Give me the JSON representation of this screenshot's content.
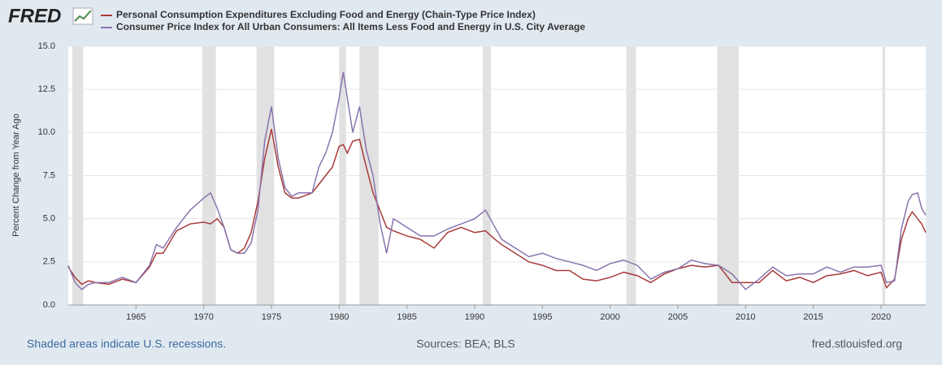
{
  "logo": "FRED",
  "chart_data": {
    "type": "line",
    "y_label": "Percent Change from Year Ago",
    "x": [
      1960.0,
      1960.5,
      1961,
      1961.5,
      1962,
      1963,
      1964,
      1965,
      1966,
      1966.5,
      1967,
      1968,
      1969,
      1970,
      1970.5,
      1971,
      1971.5,
      1972,
      1972.5,
      1973,
      1973.5,
      1974,
      1974.5,
      1975,
      1975.5,
      1976,
      1976.5,
      1977,
      1978,
      1978.5,
      1979,
      1979.5,
      1980,
      1980.3,
      1980.6,
      1981,
      1981.5,
      1982,
      1982.5,
      1983,
      1983.5,
      1984,
      1985,
      1986,
      1987,
      1988,
      1989,
      1990,
      1990.8,
      1991.5,
      1992,
      1993,
      1994,
      1995,
      1996,
      1997,
      1998,
      1999,
      2000,
      2001,
      2002,
      2003,
      2004,
      2005,
      2006,
      2007,
      2008,
      2009,
      2010,
      2011,
      2012,
      2013,
      2014,
      2015,
      2016,
      2017,
      2018,
      2019,
      2020,
      2020.4,
      2021,
      2021.5,
      2022,
      2022.3,
      2022.7,
      2023,
      2023.3
    ],
    "series": [
      {
        "name": "Personal Consumption Expenditures Excluding Food and Energy (Chain-Type Price Index)",
        "color": "#a83a3a",
        "values": [
          2.2,
          1.6,
          1.2,
          1.4,
          1.3,
          1.2,
          1.5,
          1.3,
          2.2,
          3.0,
          3.0,
          4.3,
          4.7,
          4.8,
          4.7,
          5.0,
          4.5,
          3.2,
          3.0,
          3.3,
          4.2,
          6.0,
          8.5,
          10.2,
          8.0,
          6.5,
          6.2,
          6.2,
          6.5,
          7.0,
          7.5,
          8.0,
          9.2,
          9.3,
          8.8,
          9.5,
          9.6,
          8.0,
          6.5,
          5.5,
          4.5,
          4.3,
          4.0,
          3.8,
          3.3,
          4.2,
          4.5,
          4.2,
          4.3,
          3.8,
          3.5,
          3.0,
          2.5,
          2.3,
          2.0,
          2.0,
          1.5,
          1.4,
          1.6,
          1.9,
          1.7,
          1.3,
          1.8,
          2.1,
          2.3,
          2.2,
          2.3,
          1.3,
          1.3,
          1.3,
          2.0,
          1.4,
          1.6,
          1.3,
          1.7,
          1.8,
          2.0,
          1.7,
          1.9,
          1.0,
          1.5,
          3.8,
          5.0,
          5.4,
          5.0,
          4.7,
          4.2
        ]
      },
      {
        "name": "Consumer Price Index for All Urban Consumers: All Items Less Food and Energy in U.S. City Average",
        "color": "#8a74ad",
        "values": [
          2.3,
          1.3,
          0.9,
          1.2,
          1.3,
          1.3,
          1.6,
          1.3,
          2.3,
          3.5,
          3.3,
          4.5,
          5.5,
          6.2,
          6.5,
          5.6,
          4.5,
          3.2,
          3.0,
          3.0,
          3.6,
          5.5,
          9.5,
          11.5,
          8.5,
          6.8,
          6.3,
          6.5,
          6.5,
          8.0,
          8.8,
          10.0,
          12.0,
          13.5,
          12.0,
          10.0,
          11.5,
          9.0,
          7.5,
          4.8,
          3.0,
          5.0,
          4.5,
          4.0,
          4.0,
          4.4,
          4.7,
          5.0,
          5.5,
          4.5,
          3.8,
          3.3,
          2.8,
          3.0,
          2.7,
          2.5,
          2.3,
          2.0,
          2.4,
          2.6,
          2.3,
          1.5,
          1.9,
          2.1,
          2.6,
          2.4,
          2.3,
          1.8,
          0.9,
          1.5,
          2.2,
          1.7,
          1.8,
          1.8,
          2.2,
          1.9,
          2.2,
          2.2,
          2.3,
          1.3,
          1.4,
          4.4,
          6.0,
          6.4,
          6.5,
          5.6,
          5.2
        ]
      }
    ],
    "recessions": [
      [
        1960.3,
        1961.1
      ],
      [
        1969.9,
        1970.9
      ],
      [
        1973.9,
        1975.2
      ],
      [
        1980.0,
        1980.5
      ],
      [
        1981.5,
        1982.9
      ],
      [
        1990.6,
        1991.2
      ],
      [
        2001.2,
        2001.9
      ],
      [
        2007.9,
        2009.5
      ],
      [
        2020.1,
        2020.3
      ]
    ],
    "recession_color": "#e1e1e1",
    "xlim": [
      1960,
      2023.3
    ],
    "xticks": [
      1965,
      1970,
      1975,
      1980,
      1985,
      1990,
      1995,
      2000,
      2005,
      2010,
      2015,
      2020
    ],
    "ylim": [
      0,
      15
    ],
    "yticks": [
      {
        "value": 0,
        "label": "0.0"
      },
      {
        "value": 2.5,
        "label": "2.5"
      },
      {
        "value": 5,
        "label": "5.0"
      },
      {
        "value": 7.5,
        "label": "7.5"
      },
      {
        "value": 10,
        "label": "10.0"
      },
      {
        "value": 12.5,
        "label": "12.5"
      },
      {
        "value": 15,
        "label": "15.0"
      }
    ],
    "grid": true,
    "note": "Shaded areas indicate U.S. recessions.",
    "source": "Sources: BEA; BLS",
    "site": "fred.stlouisfed.org"
  }
}
